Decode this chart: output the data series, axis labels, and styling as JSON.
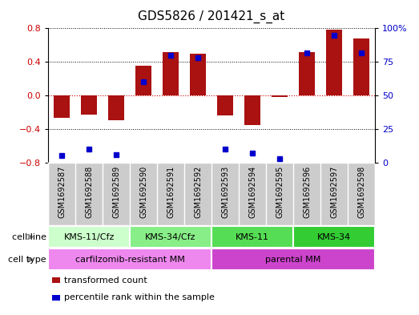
{
  "title": "GDS5826 / 201421_s_at",
  "samples": [
    "GSM1692587",
    "GSM1692588",
    "GSM1692589",
    "GSM1692590",
    "GSM1692591",
    "GSM1692592",
    "GSM1692593",
    "GSM1692594",
    "GSM1692595",
    "GSM1692596",
    "GSM1692597",
    "GSM1692598"
  ],
  "transformed_count": [
    -0.27,
    -0.23,
    -0.3,
    0.35,
    0.52,
    0.5,
    -0.24,
    -0.35,
    -0.02,
    0.52,
    0.78,
    0.68
  ],
  "percentile_rank": [
    5,
    10,
    6,
    60,
    80,
    78,
    10,
    7,
    3,
    82,
    95,
    82
  ],
  "ylim_left": [
    -0.8,
    0.8
  ],
  "ylim_right": [
    0,
    100
  ],
  "yticks_left": [
    -0.8,
    -0.4,
    0,
    0.4,
    0.8
  ],
  "yticks_right": [
    0,
    25,
    50,
    75,
    100
  ],
  "bar_color": "#aa1111",
  "dot_color": "#0000cc",
  "cell_line_groups": [
    {
      "label": "KMS-11/Cfz",
      "start": 0,
      "end": 3,
      "color": "#ccffcc"
    },
    {
      "label": "KMS-34/Cfz",
      "start": 3,
      "end": 6,
      "color": "#88ee88"
    },
    {
      "label": "KMS-11",
      "start": 6,
      "end": 9,
      "color": "#55dd55"
    },
    {
      "label": "KMS-34",
      "start": 9,
      "end": 12,
      "color": "#33cc33"
    }
  ],
  "cell_type_groups": [
    {
      "label": "carfilzomib-resistant MM",
      "start": 0,
      "end": 6,
      "color": "#ee88ee"
    },
    {
      "label": "parental MM",
      "start": 6,
      "end": 12,
      "color": "#cc44cc"
    }
  ],
  "legend_items": [
    {
      "label": "transformed count",
      "color": "#aa1111"
    },
    {
      "label": "percentile rank within the sample",
      "color": "#0000cc"
    }
  ],
  "background_color": "#ffffff",
  "zero_line_color": "#cc0000",
  "title_fontsize": 11,
  "tick_fontsize": 8,
  "label_fontsize": 7,
  "annot_fontsize": 8
}
